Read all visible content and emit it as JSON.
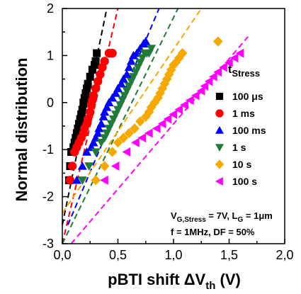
{
  "chart_data": {
    "type": "scatter",
    "xlabel": {
      "main": "pBTI shift ΔV",
      "sub": "th",
      "tail": " (V)"
    },
    "ylabel": "Normal distribution",
    "xlim": [
      0,
      2
    ],
    "ylim": [
      -3,
      2
    ],
    "x_ticks": [
      "0,0",
      "0,5",
      "1,0",
      "1,5",
      "2,0"
    ],
    "y_ticks": [
      "2",
      "1",
      "0",
      "-1",
      "-2",
      "-3"
    ],
    "x_tick_values": [
      0,
      0.5,
      1.0,
      1.5,
      2.0
    ],
    "y_tick_values": [
      2,
      1,
      0,
      -1,
      -2,
      -3
    ],
    "grid": false,
    "legend_title": {
      "main": "t",
      "sub": "Stress"
    },
    "legend_position": "right",
    "annotations": {
      "line1": {
        "v": "V",
        "vsub": "G,Stress",
        "rest": " = 7V, L",
        "lsub": "G",
        "tail": " = 1μm"
      },
      "line2": "f = 1MHz, DF = 50%"
    },
    "series": [
      {
        "name": "100 μs",
        "color": "#000000",
        "marker": "square",
        "x": [
          0.06,
          0.07,
          0.08,
          0.1,
          0.11,
          0.12,
          0.13,
          0.14,
          0.15,
          0.16,
          0.17,
          0.18,
          0.19,
          0.2,
          0.21,
          0.22,
          0.23,
          0.25,
          0.27,
          0.29,
          0.3,
          0.31
        ],
        "y": [
          -1.65,
          -1.35,
          -1.05,
          -0.95,
          -0.85,
          -0.75,
          -0.65,
          -0.55,
          -0.45,
          -0.35,
          -0.25,
          -0.15,
          0.0,
          0.1,
          0.2,
          0.3,
          0.4,
          0.55,
          0.7,
          0.8,
          0.88,
          1.05
        ],
        "fit": [
          [
            0.0,
            -2.6
          ],
          [
            0.4,
            2.0
          ]
        ]
      },
      {
        "name": "1 ms",
        "color": "#ff0000",
        "marker": "circle",
        "x": [
          0.07,
          0.09,
          0.11,
          0.13,
          0.15,
          0.17,
          0.19,
          0.2,
          0.22,
          0.23,
          0.25,
          0.26,
          0.27,
          0.28,
          0.3,
          0.32,
          0.34,
          0.36,
          0.38,
          0.42,
          0.45
        ],
        "y": [
          -1.65,
          -1.35,
          -1.05,
          -0.95,
          -0.85,
          -0.75,
          -0.65,
          -0.55,
          -0.45,
          -0.35,
          -0.2,
          -0.05,
          0.05,
          0.15,
          0.3,
          0.45,
          0.6,
          0.75,
          0.88,
          1.05,
          1.05
        ],
        "fit": [
          [
            0.0,
            -3.0
          ],
          [
            0.5,
            2.0
          ]
        ]
      },
      {
        "name": "100 ms",
        "color": "#0000ff",
        "marker": "triangle-up",
        "x": [
          0.13,
          0.18,
          0.22,
          0.26,
          0.28,
          0.3,
          0.32,
          0.33,
          0.35,
          0.37,
          0.38,
          0.4,
          0.42,
          0.45,
          0.48,
          0.5,
          0.53,
          0.55,
          0.58,
          0.6,
          0.62,
          0.64,
          0.67,
          0.7,
          0.73,
          0.75
        ],
        "y": [
          -1.65,
          -1.35,
          -1.05,
          -0.95,
          -0.85,
          -0.75,
          -0.65,
          -0.55,
          -0.45,
          -0.3,
          -0.2,
          -0.1,
          0.0,
          0.1,
          0.2,
          0.3,
          0.4,
          0.5,
          0.6,
          0.75,
          0.88,
          1.0,
          1.05,
          1.15,
          1.25,
          1.3
        ],
        "fit": [
          [
            0.05,
            -2.6
          ],
          [
            0.87,
            2.0
          ]
        ]
      },
      {
        "name": "1 s",
        "color": "#1e7b38",
        "marker": "triangle-down",
        "x": [
          0.18,
          0.24,
          0.3,
          0.35,
          0.38,
          0.4,
          0.42,
          0.44,
          0.46,
          0.48,
          0.5,
          0.52,
          0.54,
          0.56,
          0.58,
          0.6,
          0.62,
          0.64,
          0.66,
          0.68,
          0.7,
          0.72,
          0.74,
          0.76,
          0.78,
          0.8
        ],
        "y": [
          -1.65,
          -1.35,
          -1.05,
          -0.85,
          -0.75,
          -0.65,
          -0.55,
          -0.45,
          -0.35,
          -0.25,
          -0.15,
          -0.05,
          0.05,
          0.15,
          0.25,
          0.35,
          0.45,
          0.55,
          0.65,
          0.75,
          0.85,
          0.95,
          1.05,
          1.05,
          1.05,
          1.15
        ],
        "fit": [
          [
            0.0,
            -3.0
          ],
          [
            1.04,
            2.0
          ]
        ]
      },
      {
        "name": "10 s",
        "color": "#f5a800",
        "marker": "diamond",
        "x": [
          0.3,
          0.38,
          0.45,
          0.5,
          0.55,
          0.6,
          0.65,
          0.7,
          0.75,
          0.78,
          0.8,
          0.83,
          0.86,
          0.88,
          0.9,
          0.92,
          0.94,
          0.96,
          0.98,
          1.0,
          1.02,
          1.05,
          1.08,
          1.4
        ],
        "y": [
          -1.65,
          -1.35,
          -1.05,
          -0.85,
          -0.75,
          -0.65,
          -0.55,
          -0.4,
          -0.3,
          -0.2,
          -0.1,
          0.0,
          0.1,
          0.2,
          0.3,
          0.4,
          0.5,
          0.6,
          0.7,
          0.8,
          0.85,
          0.95,
          1.05,
          1.3
        ],
        "fit": [
          [
            0.0,
            -2.35
          ],
          [
            1.25,
            2.0
          ]
        ]
      },
      {
        "name": "100 s",
        "color": "#ff00ff",
        "marker": "triangle-left",
        "x": [
          0.38,
          0.48,
          0.58,
          0.66,
          0.72,
          0.78,
          0.85,
          0.9,
          0.95,
          1.0,
          1.05,
          1.1,
          1.15,
          1.2,
          1.25,
          1.28,
          1.32,
          1.36,
          1.4,
          1.45,
          1.5,
          1.55,
          1.6
        ],
        "y": [
          -1.65,
          -1.35,
          -1.05,
          -0.85,
          -0.75,
          -0.65,
          -0.55,
          -0.45,
          -0.35,
          -0.25,
          -0.15,
          -0.05,
          0.05,
          0.15,
          0.25,
          0.35,
          0.45,
          0.55,
          0.65,
          0.75,
          0.85,
          0.95,
          1.05
        ],
        "fit": [
          [
            0.08,
            -3.0
          ],
          [
            1.67,
            1.4
          ]
        ]
      }
    ]
  }
}
